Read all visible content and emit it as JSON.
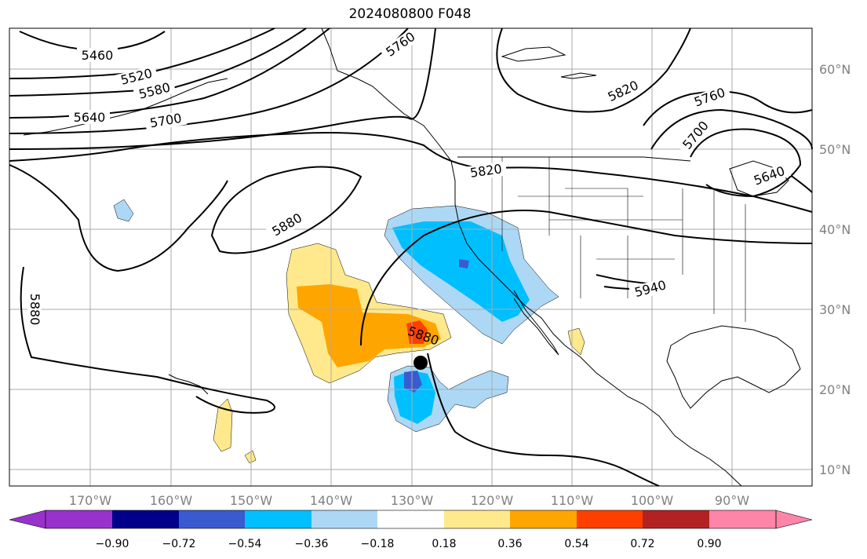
{
  "title": "2024080800 F048",
  "map": {
    "lon_ticks": [
      "170°W",
      "160°W",
      "150°W",
      "140°W",
      "130°W",
      "120°W",
      "110°W",
      "100°W",
      "90°W"
    ],
    "lat_ticks": [
      "60°N",
      "50°N",
      "40°N",
      "30°N",
      "20°N",
      "10°N"
    ],
    "contour_labels": [
      "5460",
      "5520",
      "5580",
      "5640",
      "5700",
      "5760",
      "5820",
      "5820",
      "5880",
      "5880",
      "5880",
      "5940",
      "5760",
      "5700",
      "5640"
    ],
    "storm_marker": "tropical cyclone position"
  },
  "colorbar": {
    "labels": [
      "−0.90",
      "−0.72",
      "−0.54",
      "−0.36",
      "−0.18",
      "0.18",
      "0.36",
      "0.54",
      "0.72",
      "0.90"
    ],
    "colors": [
      "#9932cc",
      "#00008b",
      "#3a5bd0",
      "#00bfff",
      "#add8f5",
      "#ffffff",
      "#ffe98c",
      "#ffa500",
      "#ff3f00",
      "#b22222",
      "#ff85a8"
    ]
  }
}
